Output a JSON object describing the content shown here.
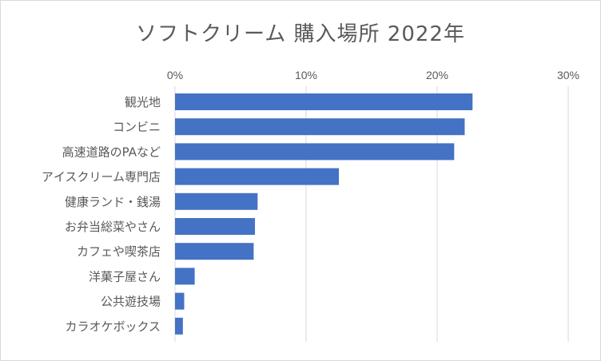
{
  "chart_data": {
    "type": "bar",
    "orientation": "horizontal",
    "title": "ソフトクリーム 購入場所 2022年",
    "categories": [
      "観光地",
      "コンビニ",
      "高速道路のPAなど",
      "アイスクリーム専門店",
      "健康ランド・銭湯",
      "お弁当総菜やさん",
      "カフェや喫茶店",
      "洋菓子屋さん",
      "公共遊技場",
      "カラオケボックス"
    ],
    "values": [
      22.7,
      22.1,
      21.3,
      12.5,
      6.3,
      6.1,
      6.0,
      1.5,
      0.7,
      0.6
    ],
    "xlim": [
      0,
      30
    ],
    "xticks": [
      "0%",
      "10%",
      "20%",
      "30%"
    ],
    "xtick_values": [
      0,
      10,
      20,
      30
    ],
    "axis_position": "top",
    "grid": true,
    "bar_color": "#4472c4",
    "grid_color": "#d9d9d9"
  }
}
